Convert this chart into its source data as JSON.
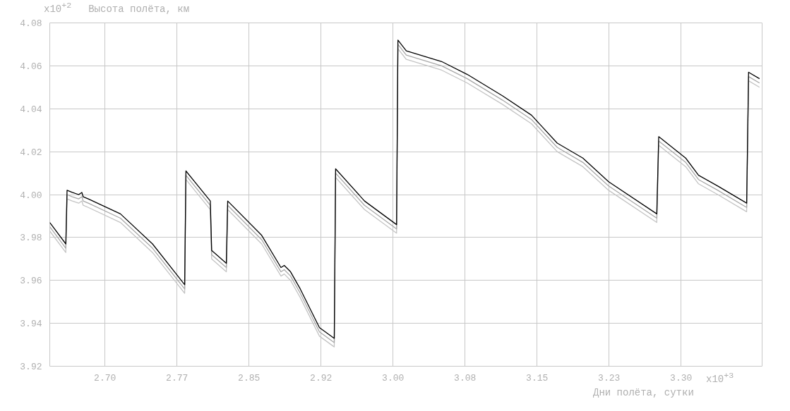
{
  "chart_data": {
    "type": "line",
    "ylabel": "Высота полёта, км",
    "xlabel": "Дни полёта, сутки",
    "annotations": [
      "x10$^{+2}$",
      "x10$^{+3}$"
    ],
    "x": [
      2.6425,
      2.6592,
      2.6605,
      2.6659,
      2.6726,
      2.6759,
      2.6773,
      2.6826,
      2.7161,
      2.7495,
      2.783,
      2.7843,
      2.8097,
      2.8111,
      2.8264,
      2.8278,
      2.8632,
      2.8833,
      2.8867,
      2.8933,
      2.9034,
      2.9234,
      2.9388,
      2.9402,
      2.9703,
      3.0037,
      3.0051,
      3.0138,
      3.0506,
      3.0773,
      3.1141,
      3.1442,
      3.171,
      3.1977,
      3.2245,
      3.2747,
      3.2767,
      3.3048,
      3.3182,
      3.3382,
      3.3683,
      3.3703,
      3.3817
    ],
    "series": [
      {
        "color": "#c4c4c4",
        "values": [
          3.983,
          3.973,
          3.998,
          3.997,
          3.996,
          3.997,
          3.995,
          3.994,
          3.987,
          3.973,
          3.954,
          4.007,
          3.993,
          3.97,
          3.964,
          3.993,
          3.977,
          3.962,
          3.963,
          3.96,
          3.952,
          3.934,
          3.929,
          4.008,
          3.993,
          3.982,
          4.068,
          4.063,
          4.058,
          4.052,
          4.042,
          4.033,
          4.02,
          4.013,
          4.002,
          3.987,
          4.023,
          4.013,
          4.005,
          4.0,
          3.992,
          4.053,
          4.05
        ]
      },
      {
        "color": "#a8a8a8",
        "values": [
          3.985,
          3.975,
          4.0,
          3.999,
          3.998,
          3.999,
          3.997,
          3.996,
          3.989,
          3.975,
          3.956,
          4.009,
          3.995,
          3.972,
          3.966,
          3.995,
          3.979,
          3.964,
          3.965,
          3.962,
          3.954,
          3.936,
          3.931,
          4.01,
          3.995,
          3.984,
          4.07,
          4.065,
          4.06,
          4.054,
          4.044,
          4.035,
          4.022,
          4.015,
          4.004,
          3.989,
          4.025,
          4.015,
          4.007,
          4.002,
          3.994,
          4.055,
          4.052
        ]
      },
      {
        "color": "#000000",
        "values": [
          3.987,
          3.977,
          4.002,
          4.001,
          4.0,
          4.001,
          3.999,
          3.998,
          3.991,
          3.977,
          3.958,
          4.011,
          3.997,
          3.974,
          3.968,
          3.997,
          3.981,
          3.966,
          3.967,
          3.964,
          3.956,
          3.938,
          3.933,
          4.012,
          3.997,
          3.986,
          4.072,
          4.067,
          4.062,
          4.056,
          4.046,
          4.037,
          4.024,
          4.017,
          4.006,
          3.991,
          4.027,
          4.017,
          4.009,
          4.004,
          3.996,
          4.057,
          4.054
        ]
      }
    ],
    "xlim": [
      2.6425,
      3.3844
    ],
    "ylim": [
      3.92,
      4.08
    ],
    "xticks": [
      {
        "value": 2.7,
        "label": "2.70"
      },
      {
        "value": 2.775,
        "label": "2.77"
      },
      {
        "value": 2.85,
        "label": "2.85"
      },
      {
        "value": 2.925,
        "label": "2.92"
      },
      {
        "value": 3.0,
        "label": "3.00"
      },
      {
        "value": 3.075,
        "label": "3.08"
      },
      {
        "value": 3.15,
        "label": "3.15"
      },
      {
        "value": 3.225,
        "label": "3.23"
      },
      {
        "value": 3.3,
        "label": "3.30"
      }
    ],
    "yticks": [
      {
        "value": 3.92,
        "label": "3.92"
      },
      {
        "value": 3.94,
        "label": "3.94"
      },
      {
        "value": 3.96,
        "label": "3.96"
      },
      {
        "value": 3.98,
        "label": "3.98"
      },
      {
        "value": 4.0,
        "label": "4.00"
      },
      {
        "value": 4.02,
        "label": "4.02"
      },
      {
        "value": 4.04,
        "label": "4.04"
      },
      {
        "value": 4.06,
        "label": "4.06"
      },
      {
        "value": 4.08,
        "label": "4.08"
      }
    ],
    "grid": true,
    "marker": "none",
    "line_style": "solid"
  }
}
